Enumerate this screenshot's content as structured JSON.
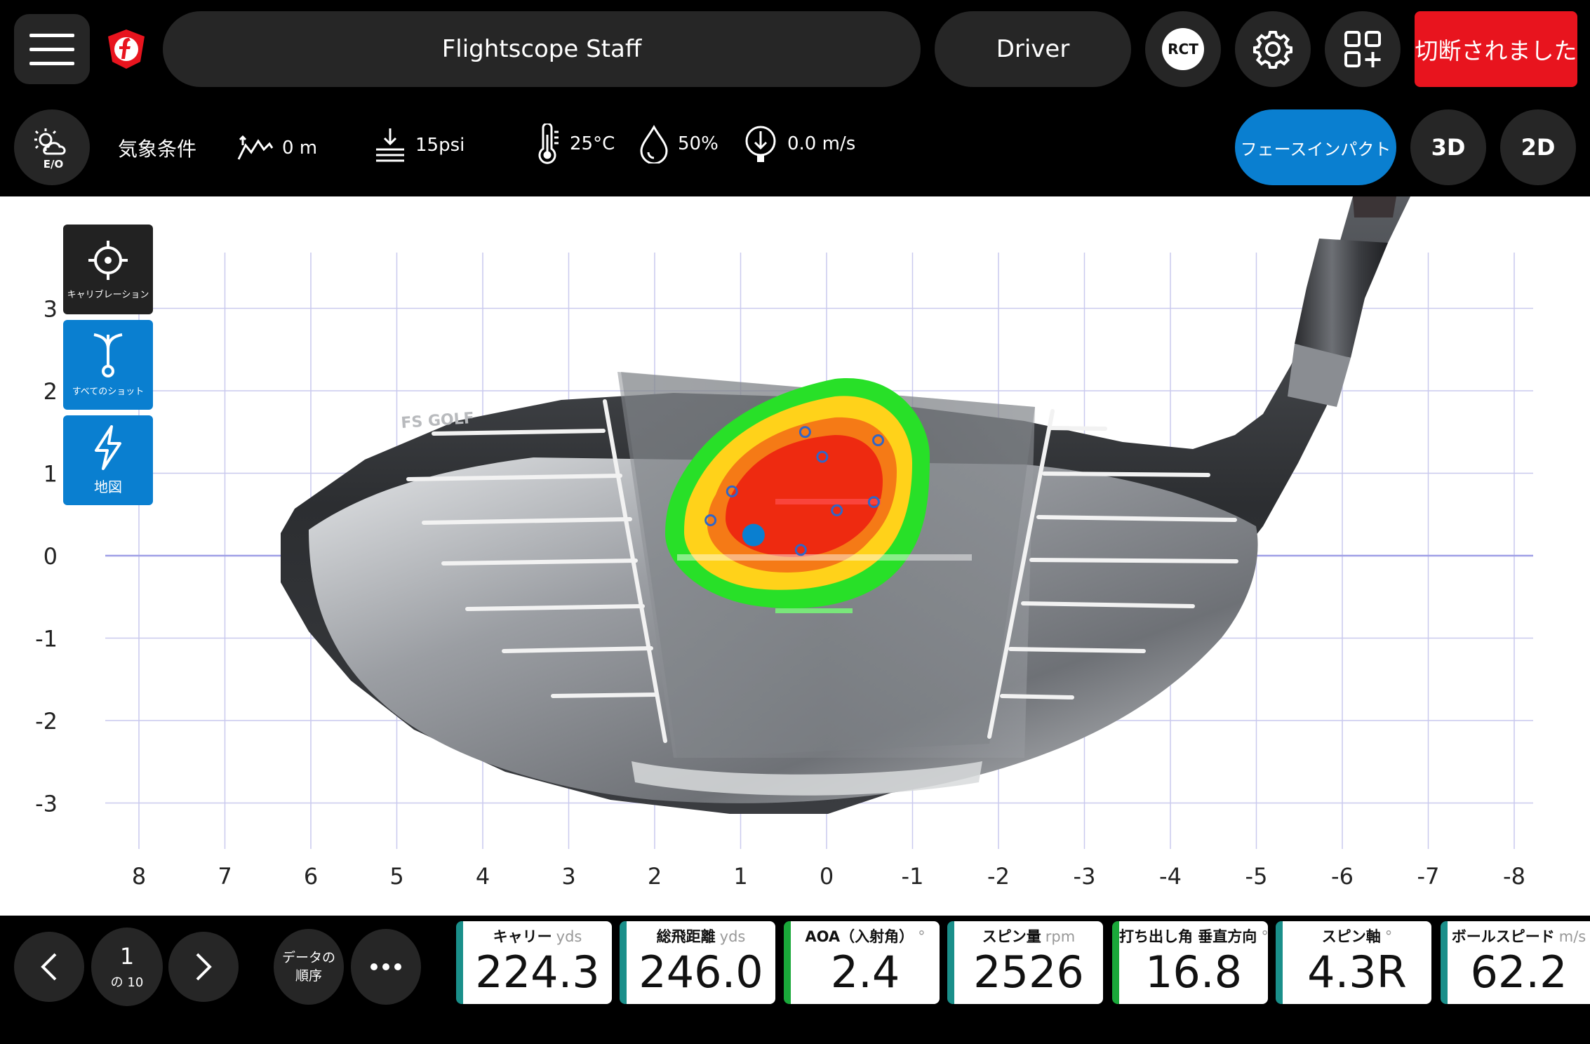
{
  "header": {
    "player": "Flightscope Staff",
    "club": "Driver",
    "rct_label": "RCT",
    "status": "切断されました"
  },
  "weather": {
    "eo_label": "E/O",
    "title": "気象条件",
    "altitude": "0 m",
    "pressure": "15psi",
    "temperature": "25°C",
    "humidity": "50%",
    "wind": "0.0 m/s"
  },
  "view_modes": {
    "face_impact": "フェースインパクト",
    "three_d": "3D",
    "two_d": "2D"
  },
  "tools": {
    "calibration": "キャリブレーション",
    "all_shots": "すべてのショット",
    "map": "地図"
  },
  "face_chart": {
    "club_brand": "FS GOLF",
    "x_ticks": [
      "8",
      "7",
      "6",
      "5",
      "4",
      "3",
      "2",
      "1",
      "0",
      "-1",
      "-2",
      "-3",
      "-4",
      "-5",
      "-6",
      "-7",
      "-8"
    ],
    "y_ticks": [
      "3",
      "2",
      "1",
      "0",
      "-1",
      "-2",
      "-3"
    ],
    "xlim": [
      8,
      -8
    ],
    "ylim": [
      -3.3,
      3.3
    ],
    "shots": [
      {
        "x": 0.25,
        "y": 1.5
      },
      {
        "x": 0.05,
        "y": 1.2
      },
      {
        "x": -0.6,
        "y": 1.4
      },
      {
        "x": 1.1,
        "y": 0.78
      },
      {
        "x": -0.55,
        "y": 0.65
      },
      {
        "x": -0.12,
        "y": 0.55
      },
      {
        "x": 1.35,
        "y": 0.43
      },
      {
        "x": 0.3,
        "y": 0.07
      }
    ],
    "current_shot": {
      "x": 0.85,
      "y": 0.25
    },
    "colors": {
      "hot": "#ee2a10",
      "warm": "#ffd21a",
      "cool": "#28e028",
      "shot_marker": "#0a7fd0"
    }
  },
  "pager": {
    "current": "1",
    "total": "の 10",
    "data_order": "データの\n順序"
  },
  "metrics": [
    {
      "title": "キャリー",
      "unit": "yds",
      "value": "224.3"
    },
    {
      "title": "総飛距離",
      "unit": "yds",
      "value": "246.0"
    },
    {
      "title": "AOA（入射角）",
      "unit": "°",
      "value": "2.4"
    },
    {
      "title": "スピン量",
      "unit": "rpm",
      "value": "2526"
    },
    {
      "title": "打ち出し角 垂直方向",
      "unit": "°",
      "value": "16.8"
    },
    {
      "title": "スピン軸",
      "unit": "°",
      "value": "4.3R"
    },
    {
      "title": "ボールスピード",
      "unit": "m/s",
      "value": "62.2"
    }
  ]
}
